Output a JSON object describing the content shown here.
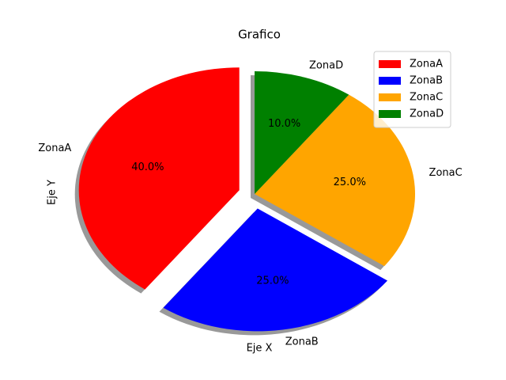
{
  "chart_data": {
    "type": "pie",
    "title": "Grafico",
    "x_label": "Eje X",
    "y_label": "Eje Y",
    "categories": [
      "ZonaA",
      "ZonaB",
      "ZonaC",
      "ZonaD"
    ],
    "values": [
      40,
      25,
      25,
      10
    ],
    "value_labels": [
      "40.0%",
      "25.0%",
      "25.0%",
      "10.0%"
    ],
    "colors": [
      "red",
      "blue",
      "orange",
      "green"
    ],
    "legend": "upper right",
    "shadow": true
  }
}
